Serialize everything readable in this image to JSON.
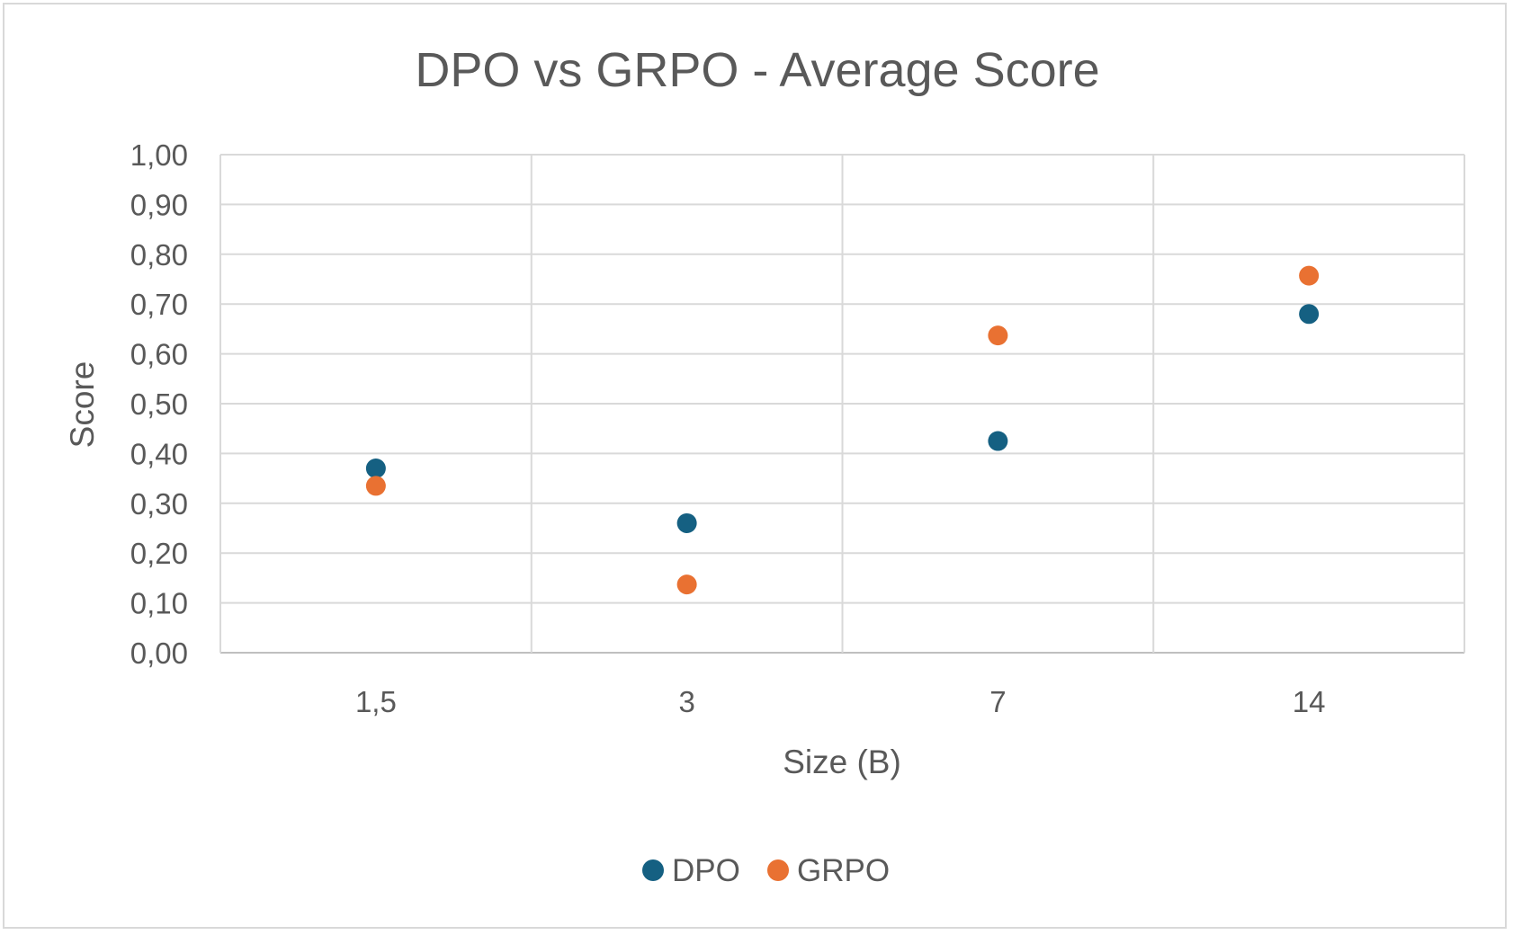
{
  "chart_data": {
    "type": "scatter",
    "title": "DPO vs GRPO - Average Score",
    "xlabel": "Size (B)",
    "ylabel": "Score",
    "categories": [
      "1,5",
      "3",
      "7",
      "14"
    ],
    "ylim": [
      0,
      1
    ],
    "ytick_step": 0.1,
    "ytick_labels": [
      "0,00",
      "0,10",
      "0,20",
      "0,30",
      "0,40",
      "0,50",
      "0,60",
      "0,70",
      "0,80",
      "0,90",
      "1,00"
    ],
    "grid": true,
    "legend_position": "bottom",
    "series": [
      {
        "name": "DPO",
        "color": "#156082",
        "values": [
          0.37,
          0.26,
          0.425,
          0.68
        ]
      },
      {
        "name": "GRPO",
        "color": "#e97132",
        "values": [
          0.335,
          0.137,
          0.637,
          0.757
        ]
      }
    ]
  }
}
